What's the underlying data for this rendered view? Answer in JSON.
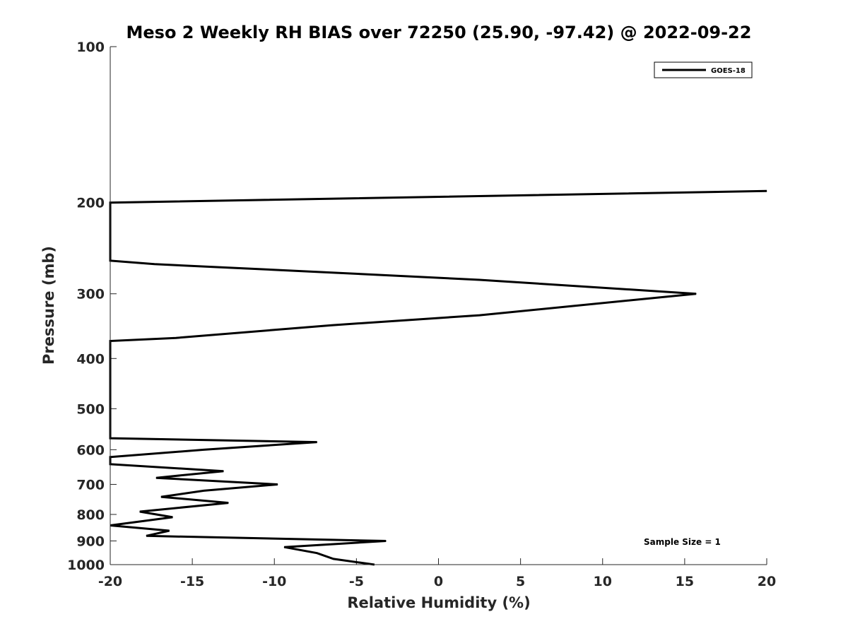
{
  "chart_data": {
    "type": "line",
    "title": "Meso 2 Weekly RH BIAS over 72250 (25.90, -97.42) @ 2022-09-22",
    "xlabel": "Relative Humidity (%)",
    "ylabel": "Pressure (mb)",
    "xlim": [
      -20,
      20
    ],
    "ylim": [
      1000,
      100
    ],
    "y_scale": "log",
    "y_direction": "reversed",
    "xticks": [
      -20,
      -15,
      -10,
      -5,
      0,
      5,
      10,
      15,
      20
    ],
    "yticks": [
      100,
      200,
      300,
      400,
      500,
      600,
      700,
      800,
      900,
      1000
    ],
    "grid": false,
    "legend_position": "top-right",
    "annotation": "Sample Size = 1",
    "series": [
      {
        "name": "GOES-18",
        "color": "#000000",
        "points": [
          [
            -3.9,
            1000
          ],
          [
            -6.4,
            975
          ],
          [
            -7.4,
            950
          ],
          [
            -9.4,
            925
          ],
          [
            -3.2,
            900
          ],
          [
            -17.8,
            880
          ],
          [
            -16.4,
            860
          ],
          [
            -20.0,
            840
          ],
          [
            -16.2,
            810
          ],
          [
            -18.2,
            790
          ],
          [
            -12.8,
            760
          ],
          [
            -16.9,
            740
          ],
          [
            -14.3,
            720
          ],
          [
            -9.8,
            700
          ],
          [
            -17.2,
            680
          ],
          [
            -13.1,
            660
          ],
          [
            -20.0,
            640
          ],
          [
            -20.0,
            620
          ],
          [
            -14.3,
            600
          ],
          [
            -7.4,
            580
          ],
          [
            -20.0,
            570
          ],
          [
            -20.0,
            370
          ],
          [
            -16.0,
            365
          ],
          [
            -6.5,
            345
          ],
          [
            2.5,
            330
          ],
          [
            15.7,
            300
          ],
          [
            2.5,
            282
          ],
          [
            -6.5,
            273
          ],
          [
            -17.3,
            263
          ],
          [
            -20.0,
            259
          ],
          [
            -20.0,
            200
          ],
          [
            20.0,
            190
          ]
        ]
      }
    ]
  }
}
